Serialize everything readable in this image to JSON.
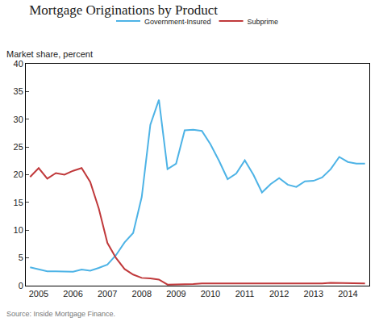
{
  "chart_data": {
    "type": "line",
    "title": "Mortgage Originations by Product",
    "y_label": "Market share, percent",
    "source": "Source: Inside Mortgage Finance.",
    "categories": [
      null,
      "2005",
      null,
      null,
      null,
      "2006",
      null,
      null,
      null,
      "2007",
      null,
      null,
      null,
      "2008",
      null,
      null,
      null,
      "2009",
      null,
      null,
      null,
      "2010",
      null,
      null,
      null,
      "2011",
      null,
      null,
      null,
      "2012",
      null,
      null,
      null,
      "2013",
      null,
      null,
      null,
      "2014",
      null,
      null
    ],
    "series": [
      {
        "name": "Government-Insured",
        "color": "#4db3e6",
        "values": [
          3.3,
          3.0,
          2.6,
          2.6,
          2.6,
          2.5,
          2.9,
          2.7,
          3.2,
          3.8,
          5.5,
          7.8,
          9.5,
          16.0,
          29.0,
          33.5,
          21.0,
          22.0,
          28.0,
          28.1,
          27.9,
          25.5,
          22.5,
          19.2,
          20.2,
          22.6,
          20.0,
          16.8,
          18.3,
          19.4,
          18.2,
          17.8,
          18.8,
          18.9,
          19.5,
          21.0,
          23.2,
          22.3,
          22.0,
          22.0
        ]
      },
      {
        "name": "Subprime",
        "color": "#c0393b",
        "values": [
          19.6,
          21.2,
          19.3,
          20.3,
          20.0,
          20.7,
          21.2,
          18.7,
          13.9,
          7.7,
          5.0,
          3.0,
          2.0,
          1.4,
          1.3,
          1.1,
          0.2,
          0.2,
          0.3,
          0.3,
          0.4,
          0.4,
          0.3,
          0.3,
          0.4,
          0.4,
          0.3,
          0.3,
          0.3,
          0.3,
          0.3,
          0.3,
          0.3,
          0.3,
          0.4,
          0.5,
          0.5,
          0.4,
          0.4,
          0.4
        ]
      }
    ],
    "ylim": [
      0,
      40
    ],
    "yticks": [
      0,
      5,
      10,
      15,
      20,
      25,
      30,
      35,
      40
    ],
    "grid": false,
    "legend": "top"
  }
}
